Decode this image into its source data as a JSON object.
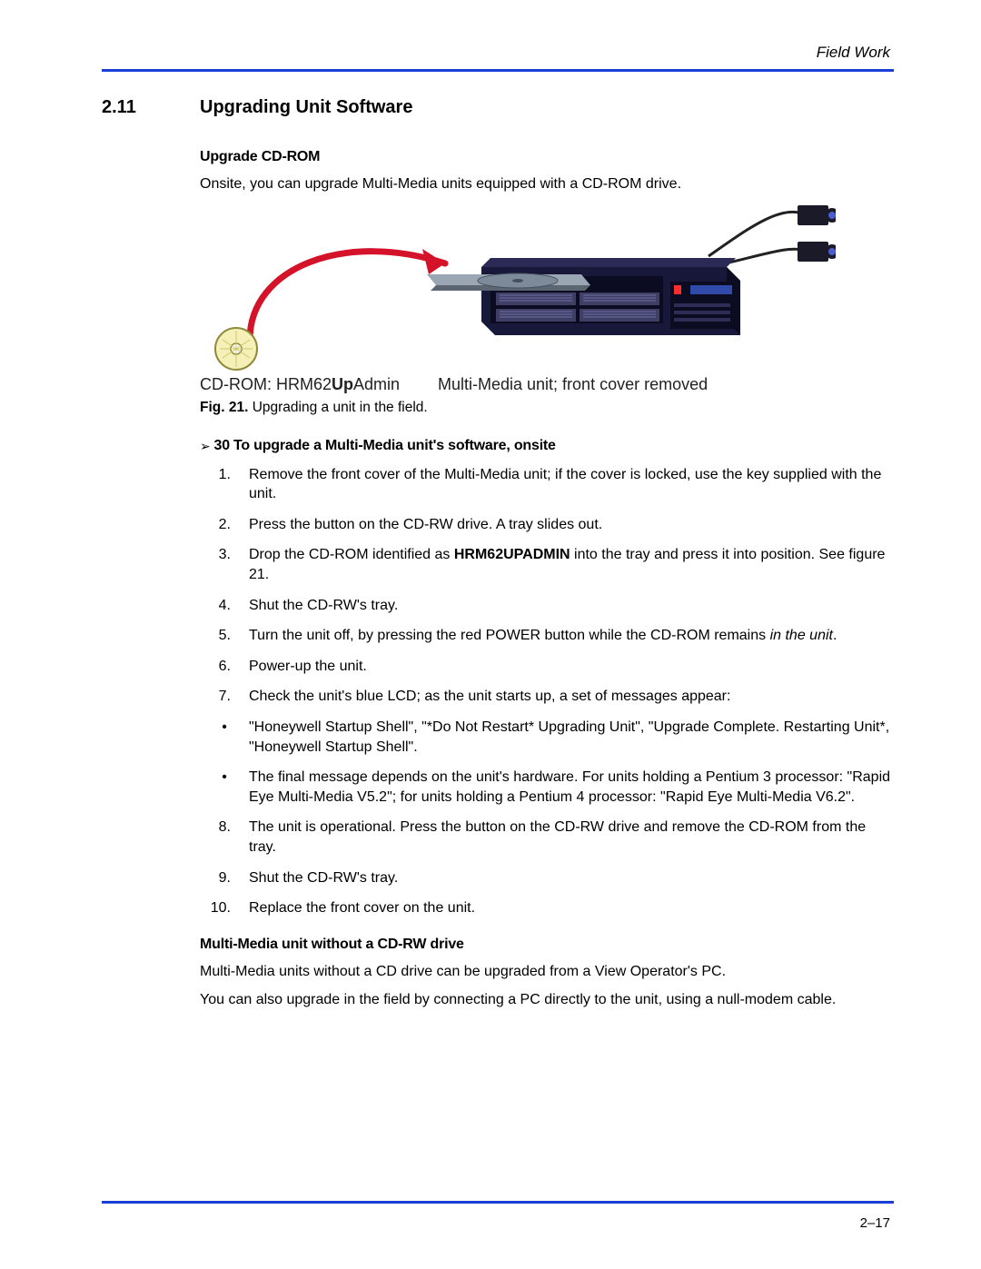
{
  "header": {
    "label": "Field Work"
  },
  "section": {
    "number": "2.11",
    "title": "Upgrading Unit Software"
  },
  "sub1": {
    "heading": "Upgrade CD-ROM",
    "intro": "Onsite, you can upgrade Multi-Media units equipped with a CD-ROM drive."
  },
  "figure": {
    "cd_label": "CD-ROM: HRM62",
    "cd_label_bold": "Up",
    "cd_label_after": "Admin",
    "unit_label": "Multi-Media unit; front cover removed",
    "caption_lead": "Fig. 21.",
    "caption_text": " Upgrading a unit in the field.",
    "colors": {
      "arrow": "#d4122a",
      "unit_body": "#18183a",
      "unit_shadow": "#0b0b22",
      "tray": "#7d8a99",
      "tray_dark": "#46505d",
      "cd_ring": "#c9c13c",
      "cable": "#222222",
      "camera": "#1a1a28",
      "lens": "#4a5ed0",
      "led_red": "#ff2d2d",
      "grill": "#3f3f66"
    }
  },
  "procedure": {
    "marker": "➢",
    "num": "30",
    "title": "  To upgrade a Multi-Media unit's software, onsite",
    "steps": [
      {
        "n": "1.",
        "parts": [
          {
            "t": "Remove the front cover of the Multi-Media unit; if the cover is locked, use the key supplied with the unit."
          }
        ]
      },
      {
        "n": "2.",
        "parts": [
          {
            "t": "Press the button on the CD-RW drive. A tray slides out."
          }
        ]
      },
      {
        "n": "3.",
        "parts": [
          {
            "t": "Drop the CD-ROM identified as "
          },
          {
            "t": "HRM62UPADMIN",
            "b": true
          },
          {
            "t": " into the tray and press it into position. See figure 21."
          }
        ]
      },
      {
        "n": "4.",
        "parts": [
          {
            "t": "Shut the CD-RW's tray."
          }
        ]
      },
      {
        "n": "5.",
        "parts": [
          {
            "t": "Turn the unit off, by pressing the red POWER button while the CD-ROM remains "
          },
          {
            "t": "in the unit",
            "i": true
          },
          {
            "t": "."
          }
        ]
      },
      {
        "n": "6.",
        "parts": [
          {
            "t": "Power-up the unit."
          }
        ]
      },
      {
        "n": "7.",
        "parts": [
          {
            "t": "Check the unit's blue LCD; as the unit starts up, a set of messages appear:"
          }
        ]
      }
    ],
    "bullets": [
      {
        "parts": [
          {
            "t": "\"Honeywell Startup Shell\", \"*Do Not Restart* Upgrading Unit\", \"Upgrade Complete. Restarting Unit*, \"Honeywell Startup Shell\"."
          }
        ]
      },
      {
        "parts": [
          {
            "t": "The final message depends on the unit's hardware.\nFor units holding a Pentium 3 processor: \"Rapid Eye Multi-Media V5.2\"; for units holding a Pentium 4 processor: \"Rapid Eye Multi-Media V6.2\"."
          }
        ]
      }
    ],
    "steps2": [
      {
        "n": "8.",
        "parts": [
          {
            "t": "The unit is operational. Press the button on the CD-RW drive and remove the CD-ROM from the tray."
          }
        ]
      },
      {
        "n": "9.",
        "parts": [
          {
            "t": "Shut the CD-RW's tray."
          }
        ]
      },
      {
        "n": "10.",
        "parts": [
          {
            "t": "Replace the front cover on the unit."
          }
        ]
      }
    ]
  },
  "sub2": {
    "heading": "Multi-Media unit without a CD-RW drive",
    "p1_a": "Multi-Media ",
    "p1_i": "units",
    "p1_b": " without a CD drive can be upgraded from a View Operator's PC.",
    "p2": "You can also upgrade in the field by connecting a PC directly to the unit, using a null-modem cable."
  },
  "footer": {
    "page": "2–17"
  }
}
